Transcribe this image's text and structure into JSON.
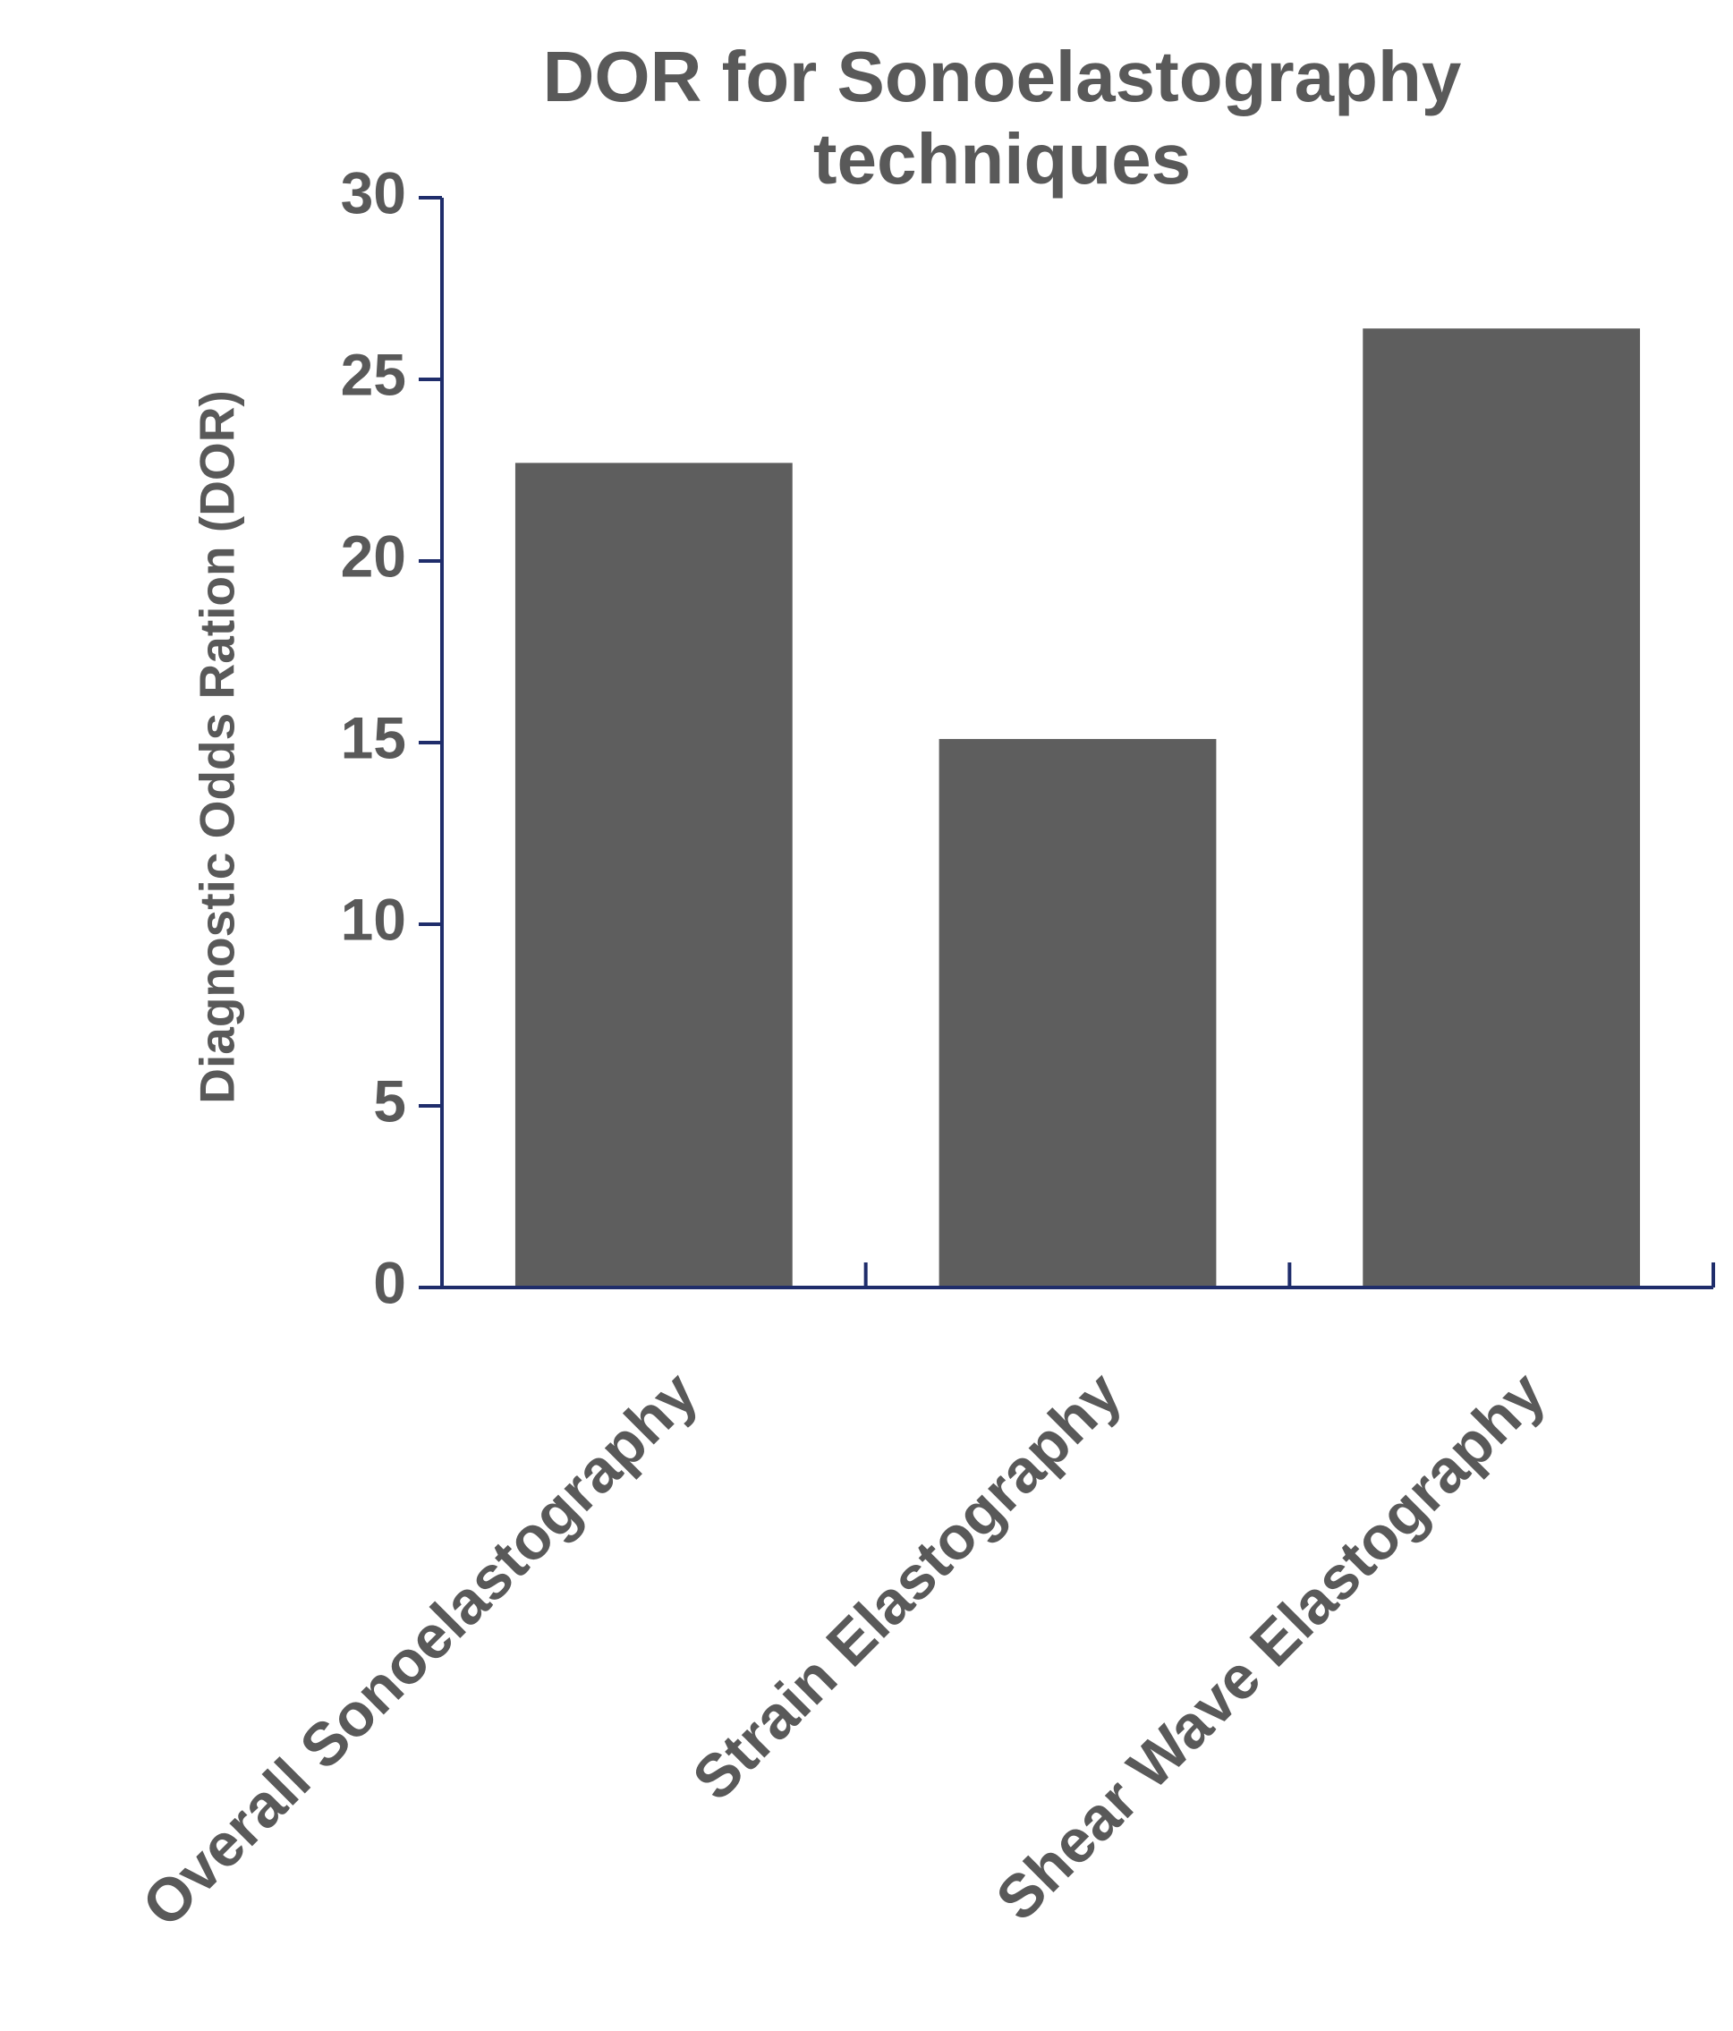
{
  "chart_data": {
    "type": "bar",
    "title": "DOR for Sonoelastography techniques",
    "y_label": "Diagnostic Odds Ration (DOR)",
    "categories": [
      "Overall Sonoelastography",
      "Strain Elastography",
      "Shear Wave Elastography"
    ],
    "values": [
      22.7,
      15.1,
      26.4
    ],
    "color": "#5e5e5e",
    "ylim": [
      0,
      30
    ],
    "yticks": [
      0,
      5,
      10,
      15,
      20,
      25,
      30
    ],
    "grid": false
  }
}
